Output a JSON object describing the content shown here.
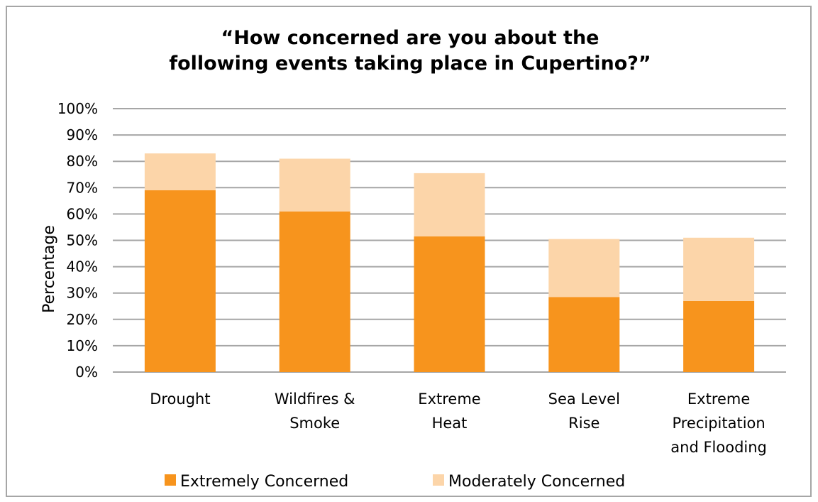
{
  "chart_data": {
    "type": "bar",
    "stacked": true,
    "title_lines": [
      "“How concerned are you about the",
      "following events taking place in Cupertino?”"
    ],
    "ylabel": "Percentage",
    "xlabel": "",
    "ylim": [
      0,
      100
    ],
    "yticks": [
      "0%",
      "10%",
      "20%",
      "30%",
      "40%",
      "50%",
      "60%",
      "70%",
      "80%",
      "90%",
      "100%"
    ],
    "grid": true,
    "legend_position": "bottom",
    "categories": [
      [
        "Drought"
      ],
      [
        "Wildfires &",
        "Smoke"
      ],
      [
        "Extreme",
        "Heat"
      ],
      [
        "Sea Level",
        "Rise"
      ],
      [
        "Extreme",
        "Precipitation",
        "and Flooding"
      ]
    ],
    "series": [
      {
        "name": "Extremely Concerned",
        "color": "#f7941d",
        "values": [
          69,
          61,
          51.5,
          28.5,
          27
        ]
      },
      {
        "name": "Moderately Concerned",
        "color": "#fcd5a9",
        "values": [
          14,
          20,
          24,
          22,
          24
        ]
      }
    ]
  }
}
